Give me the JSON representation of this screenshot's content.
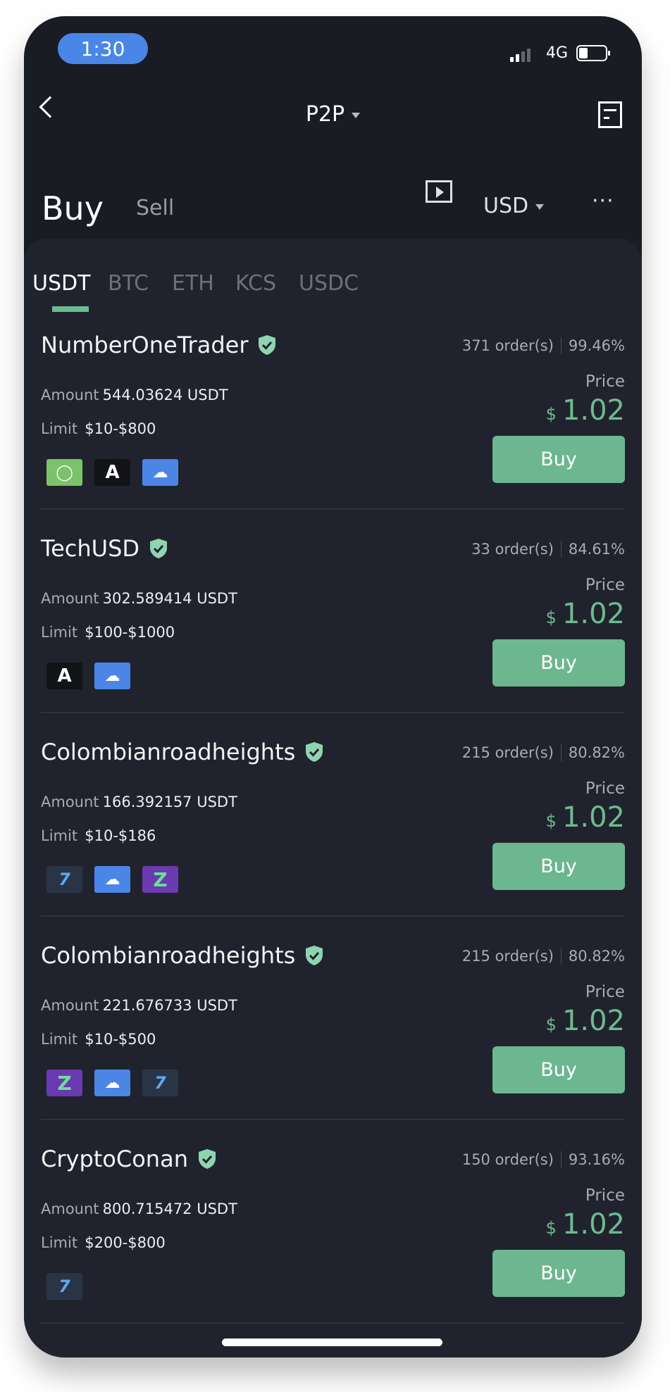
{
  "status_bar": {
    "time": "1:30",
    "network": "4G",
    "battery_icon": "battery-icon",
    "signal_icon": "signal-icon"
  },
  "nav": {
    "title": "P2P",
    "back_icon": "chevron-left-icon",
    "orders_icon": "orders-icon"
  },
  "mode": {
    "buy": "Buy",
    "sell": "Sell",
    "video_icon": "play-icon",
    "currency": "USD",
    "more": "···"
  },
  "tabs": [
    {
      "label": "USDT",
      "active": true
    },
    {
      "label": "BTC"
    },
    {
      "label": "ETH"
    },
    {
      "label": "KCS"
    },
    {
      "label": "USDC"
    }
  ],
  "colors": {
    "accent": "#6dbb90",
    "background": "#1a1c24",
    "panel": "#20232d"
  },
  "common": {
    "amount_label": "Amount",
    "limit_label": "Limit",
    "price_label": "Price",
    "currency_symbol": "$",
    "buy_button": "Buy"
  },
  "offers": [
    {
      "name": "NumberOneTrader",
      "orders": "371 order(s)",
      "completion": "99.46%",
      "amount": "544.03624 USDT",
      "limit": "$10-$800",
      "price": "1.02",
      "payments": [
        "oxxo",
        "airtm",
        "cloud"
      ]
    },
    {
      "name": "TechUSD",
      "orders": "33 order(s)",
      "completion": "84.61%",
      "amount": "302.589414 USDT",
      "limit": "$100-$1000",
      "price": "1.02",
      "payments": [
        "airtm",
        "cloud"
      ]
    },
    {
      "name": "Colombianroadheights",
      "orders": "215 order(s)",
      "completion": "80.82%",
      "amount": "166.392157 USDT",
      "limit": "$10-$186",
      "price": "1.02",
      "payments": [
        "wise",
        "cloud",
        "zelle"
      ]
    },
    {
      "name": "Colombianroadheights",
      "orders": "215 order(s)",
      "completion": "80.82%",
      "amount": "221.676733 USDT",
      "limit": "$10-$500",
      "price": "1.02",
      "payments": [
        "zelle",
        "cloud",
        "wise"
      ]
    },
    {
      "name": "CryptoConan",
      "orders": "150 order(s)",
      "completion": "93.16%",
      "amount": "800.715472 USDT",
      "limit": "$200-$800",
      "price": "1.02",
      "payments": [
        "wise"
      ]
    }
  ]
}
